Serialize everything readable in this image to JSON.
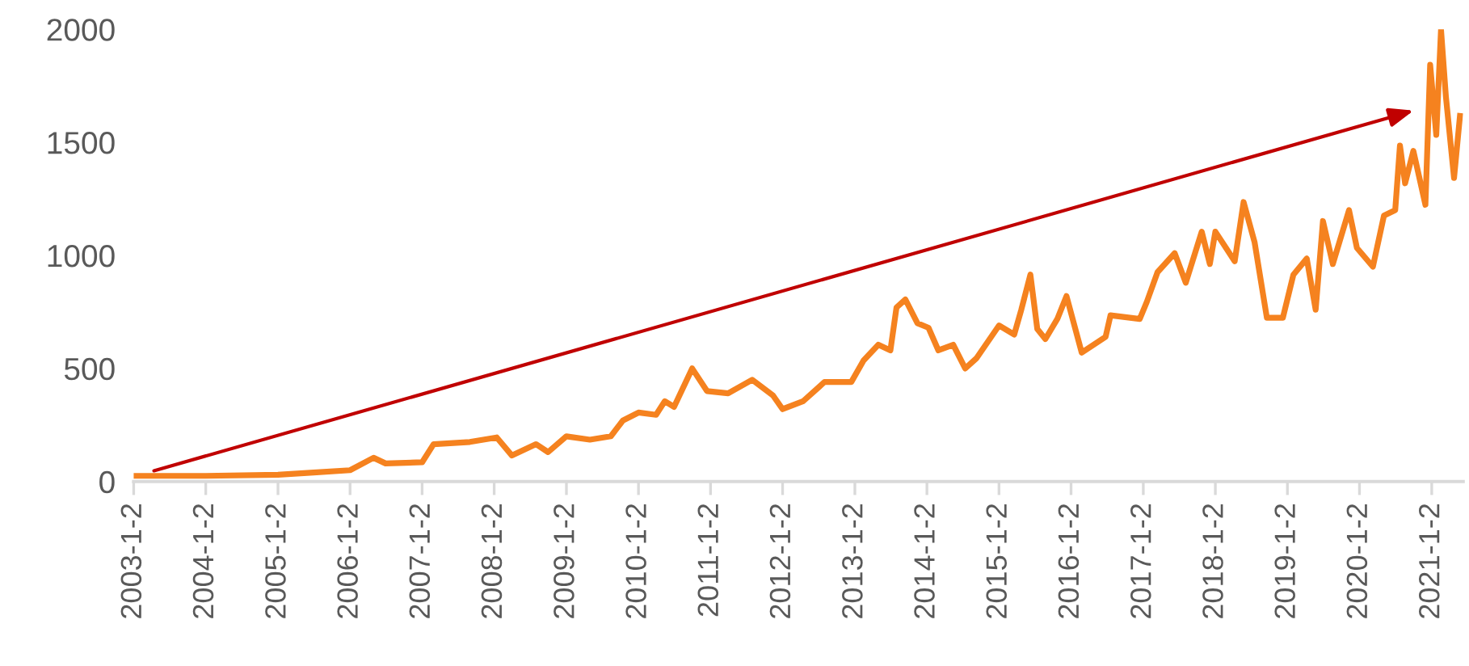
{
  "chart_data": {
    "type": "line",
    "x": [
      "2003-01-02",
      "2004-01-02",
      "2005-01-02",
      "2005-07-01",
      "2006-01-02",
      "2006-05-01",
      "2006-07-01",
      "2007-01-02",
      "2007-03-01",
      "2007-09-01",
      "2008-01-15",
      "2008-04-01",
      "2008-08-01",
      "2008-10-01",
      "2009-01-02",
      "2009-05-01",
      "2009-08-15",
      "2009-10-15",
      "2010-01-02",
      "2010-04-01",
      "2010-05-15",
      "2010-07-01",
      "2010-10-01",
      "2010-12-15",
      "2011-04-01",
      "2011-08-01",
      "2011-11-15",
      "2012-01-02",
      "2012-04-15",
      "2012-08-01",
      "2012-12-15",
      "2013-02-15",
      "2013-05-01",
      "2013-07-01",
      "2013-08-01",
      "2013-09-15",
      "2013-11-15",
      "2014-01-10",
      "2014-03-01",
      "2014-05-15",
      "2014-07-15",
      "2014-09-10",
      "2015-01-02",
      "2015-03-20",
      "2015-04-25",
      "2015-06-10",
      "2015-07-15",
      "2015-08-25",
      "2015-10-25",
      "2015-12-10",
      "2016-02-25",
      "2016-06-25",
      "2016-07-20",
      "2016-12-15",
      "2017-01-20",
      "2017-03-15",
      "2017-06-10",
      "2017-08-05",
      "2017-10-25",
      "2017-12-05",
      "2018-01-02",
      "2018-04-10",
      "2018-05-25",
      "2018-07-20",
      "2018-09-20",
      "2018-12-10",
      "2019-02-01",
      "2019-04-10",
      "2019-05-25",
      "2019-07-01",
      "2019-08-20",
      "2019-11-10",
      "2019-12-20",
      "2020-03-10",
      "2020-05-05",
      "2020-07-01",
      "2020-07-25",
      "2020-08-20",
      "2020-10-01",
      "2020-12-01",
      "2020-12-25",
      "2021-01-25",
      "2021-02-18",
      "2021-03-15",
      "2021-04-25",
      "2021-05-25"
    ],
    "series": [
      {
        "color": "#f5821f",
        "values": [
          25,
          25,
          30,
          40,
          50,
          105,
          80,
          85,
          165,
          175,
          195,
          115,
          165,
          130,
          200,
          185,
          200,
          270,
          305,
          295,
          355,
          330,
          500,
          400,
          390,
          450,
          380,
          320,
          355,
          440,
          440,
          535,
          605,
          580,
          770,
          805,
          700,
          680,
          580,
          605,
          500,
          545,
          690,
          650,
          760,
          915,
          675,
          630,
          720,
          820,
          570,
          640,
          735,
          719,
          795,
          926,
          1010,
          879,
          1105,
          962,
          1105,
          974,
          1236,
          1057,
          724,
          724,
          914,
          986,
          760,
          1152,
          962,
          1200,
          1033,
          950,
          1176,
          1200,
          1486,
          1319,
          1462,
          1224,
          1843,
          1533,
          1998,
          1700,
          1343,
          1617
        ]
      }
    ],
    "xlim": [
      "2003-01-02",
      "2021-06-10"
    ],
    "xticks": [
      {
        "value": "2003-01-02",
        "label": "2003-1-2"
      },
      {
        "value": "2004-01-02",
        "label": "2004-1-2"
      },
      {
        "value": "2005-01-02",
        "label": "2005-1-2"
      },
      {
        "value": "2006-01-02",
        "label": "2006-1-2"
      },
      {
        "value": "2007-01-02",
        "label": "2007-1-2"
      },
      {
        "value": "2008-01-02",
        "label": "2008-1-2"
      },
      {
        "value": "2009-01-02",
        "label": "2009-1-2"
      },
      {
        "value": "2010-01-02",
        "label": "2010-1-2"
      },
      {
        "value": "2011-01-02",
        "label": "2011-1-2"
      },
      {
        "value": "2012-01-02",
        "label": "2012-1-2"
      },
      {
        "value": "2013-01-02",
        "label": "2013-1-2"
      },
      {
        "value": "2014-01-02",
        "label": "2014-1-2"
      },
      {
        "value": "2015-01-02",
        "label": "2015-1-2"
      },
      {
        "value": "2016-01-02",
        "label": "2016-1-2"
      },
      {
        "value": "2017-01-02",
        "label": "2017-1-2"
      },
      {
        "value": "2018-01-02",
        "label": "2018-1-2"
      },
      {
        "value": "2019-01-02",
        "label": "2019-1-2"
      },
      {
        "value": "2020-01-02",
        "label": "2020-1-2"
      },
      {
        "value": "2021-01-02",
        "label": "2021-1-2"
      }
    ],
    "ylim": [
      0,
      2000
    ],
    "yticks": [
      0,
      500,
      1000,
      1500,
      2000
    ],
    "grid": false,
    "marker": "none",
    "line_style": "solid"
  }
}
